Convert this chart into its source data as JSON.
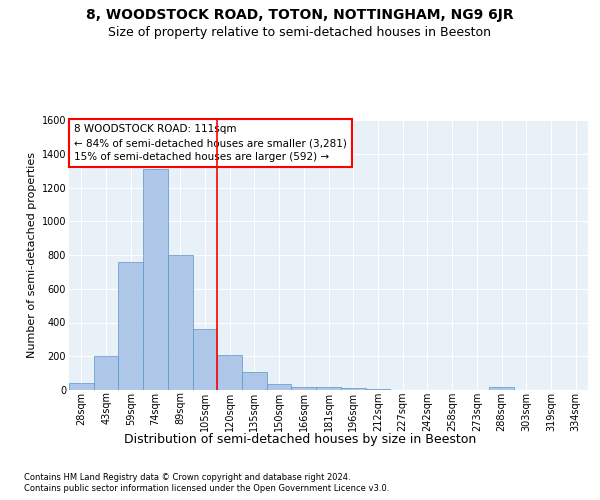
{
  "title": "8, WOODSTOCK ROAD, TOTON, NOTTINGHAM, NG9 6JR",
  "subtitle": "Size of property relative to semi-detached houses in Beeston",
  "xlabel": "Distribution of semi-detached houses by size in Beeston",
  "ylabel": "Number of semi-detached properties",
  "categories": [
    "28sqm",
    "43sqm",
    "59sqm",
    "74sqm",
    "89sqm",
    "105sqm",
    "120sqm",
    "135sqm",
    "150sqm",
    "166sqm",
    "181sqm",
    "196sqm",
    "212sqm",
    "227sqm",
    "242sqm",
    "258sqm",
    "273sqm",
    "288sqm",
    "303sqm",
    "319sqm",
    "334sqm"
  ],
  "values": [
    40,
    200,
    760,
    1310,
    800,
    360,
    205,
    105,
    35,
    20,
    15,
    10,
    7,
    0,
    0,
    0,
    0,
    20,
    0,
    0,
    0
  ],
  "bar_color": "#aec6e8",
  "bar_edge_color": "#5a96c8",
  "bg_color": "#e8f0f8",
  "grid_color": "#ffffff",
  "annotation_text": "8 WOODSTOCK ROAD: 111sqm\n← 84% of semi-detached houses are smaller (3,281)\n15% of semi-detached houses are larger (592) →",
  "vline_pos": 5.5,
  "ylim": [
    0,
    1600
  ],
  "yticks": [
    0,
    200,
    400,
    600,
    800,
    1000,
    1200,
    1400,
    1600
  ],
  "footer1": "Contains HM Land Registry data © Crown copyright and database right 2024.",
  "footer2": "Contains public sector information licensed under the Open Government Licence v3.0.",
  "title_fontsize": 10,
  "subtitle_fontsize": 9,
  "ylabel_fontsize": 8,
  "xlabel_fontsize": 9,
  "tick_fontsize": 7,
  "footer_fontsize": 6,
  "annot_fontsize": 7.5
}
